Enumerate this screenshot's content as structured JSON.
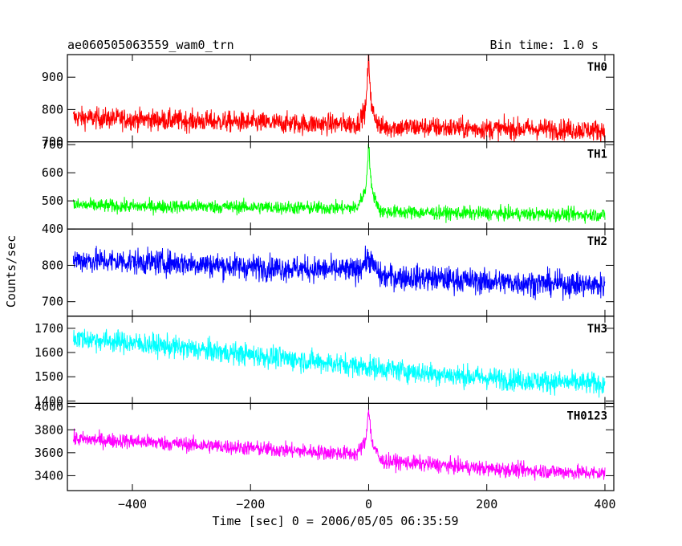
{
  "header": {
    "title": "ae060505063559_wam0_trn",
    "bin_time": "Bin time: 1.0 s"
  },
  "chart_data": {
    "type": "line",
    "xlabel": "Time [sec] 0 = 2006/05/05 06:35:59",
    "ylabel": "Counts/sec",
    "xlim": [
      -510,
      415
    ],
    "x_ticks": [
      -400,
      -200,
      0,
      200,
      400
    ],
    "x_tick_labels": [
      "−400",
      "−200",
      "0",
      "200",
      "400"
    ],
    "grid": false,
    "panels": [
      {
        "name": "TH0",
        "color": "#ff0000",
        "ylim": [
          700,
          970
        ],
        "y_ticks": [
          700,
          800,
          900
        ],
        "x": [
          -500,
          -400,
          -300,
          -200,
          -100,
          -20,
          -5,
          0,
          5,
          20,
          100,
          200,
          300,
          400
        ],
        "y": [
          775,
          770,
          765,
          760,
          755,
          755,
          800,
          960,
          800,
          745,
          745,
          740,
          740,
          735
        ],
        "noise": 30
      },
      {
        "name": "TH1",
        "color": "#00ff00",
        "ylim": [
          400,
          710
        ],
        "y_ticks": [
          400,
          500,
          600,
          700
        ],
        "x": [
          -500,
          -400,
          -300,
          -200,
          -100,
          -20,
          -5,
          0,
          5,
          20,
          100,
          200,
          300,
          400
        ],
        "y": [
          485,
          480,
          480,
          478,
          475,
          475,
          540,
          700,
          540,
          462,
          458,
          455,
          452,
          450
        ],
        "noise": 22
      },
      {
        "name": "TH2",
        "color": "#0000ff",
        "ylim": [
          660,
          900
        ],
        "y_ticks": [
          700,
          800
        ],
        "x": [
          -500,
          -400,
          -300,
          -200,
          -100,
          -20,
          0,
          20,
          100,
          200,
          300,
          400
        ],
        "y": [
          815,
          810,
          805,
          795,
          790,
          785,
          820,
          770,
          765,
          755,
          750,
          745
        ],
        "noise": 32
      },
      {
        "name": "TH3",
        "color": "#00ffff",
        "ylim": [
          1390,
          1750
        ],
        "y_ticks": [
          1400,
          1500,
          1600,
          1700
        ],
        "x": [
          -500,
          -400,
          -300,
          -200,
          -100,
          0,
          100,
          200,
          300,
          400
        ],
        "y": [
          1660,
          1640,
          1615,
          1590,
          1565,
          1540,
          1515,
          1495,
          1480,
          1470
        ],
        "noise": 42
      },
      {
        "name": "TH0123",
        "color": "#ff00ff",
        "ylim": [
          3270,
          4030
        ],
        "y_ticks": [
          3400,
          3600,
          3800,
          4000
        ],
        "x": [
          -500,
          -400,
          -300,
          -200,
          -100,
          -20,
          -5,
          0,
          5,
          20,
          100,
          200,
          300,
          400
        ],
        "y": [
          3720,
          3700,
          3670,
          3640,
          3610,
          3590,
          3700,
          4000,
          3700,
          3530,
          3500,
          3460,
          3440,
          3420
        ],
        "noise": 60
      }
    ]
  }
}
